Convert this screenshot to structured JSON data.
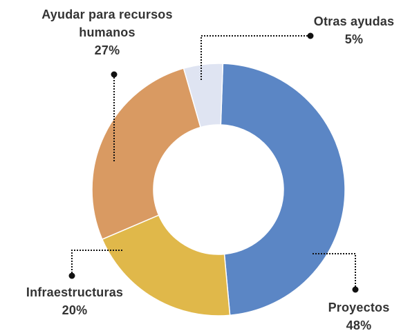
{
  "chart_data": {
    "type": "donut",
    "categories": [
      "Proyectos",
      "Infraestructuras",
      "Ayudar para recursos humanos",
      "Otras ayudas"
    ],
    "values": [
      48,
      20,
      27,
      5
    ],
    "value_labels": [
      "48%",
      "20%",
      "27%",
      "5%"
    ],
    "colors": [
      "#5b86c5",
      "#e0b84a",
      "#d99a62",
      "#dfe4f2"
    ]
  }
}
